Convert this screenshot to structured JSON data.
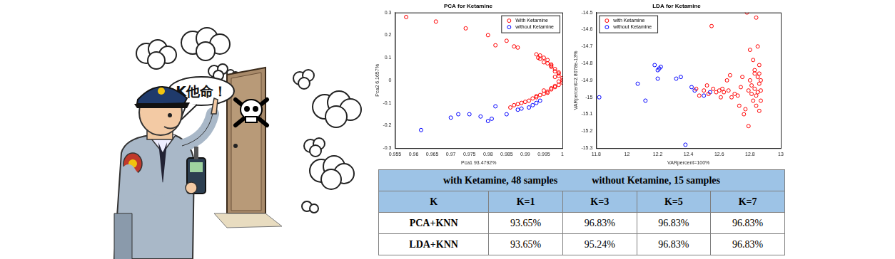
{
  "illustration": {
    "speech": "K他命！"
  },
  "chart_data": [
    {
      "type": "scatter",
      "title": "PCA for Ketamine",
      "x_label": "Pca1 93.4792%",
      "y_label": "Pca2 6.1657%",
      "xlim": [
        0.955,
        1
      ],
      "xticks": [
        0.955,
        0.96,
        0.965,
        0.97,
        0.975,
        0.98,
        0.985,
        0.99,
        0.995,
        1
      ],
      "ylim": [
        -0.3,
        0.3
      ],
      "yticks": [
        -0.3,
        -0.2,
        -0.1,
        0,
        0.1,
        0.2,
        0.3
      ],
      "grid": false,
      "legend": "upper right",
      "series": [
        {
          "name": "With Ketamine",
          "color": "#ff0000",
          "marker": "circle",
          "x": [
            0.958,
            0.966,
            0.974,
            0.98,
            0.982,
            0.985,
            0.987,
            0.988,
            0.993,
            0.994,
            0.995,
            0.996,
            0.995,
            0.997,
            0.997,
            0.998,
            0.998,
            0.999,
            0.999,
            1.0,
            1.0,
            0.999,
            1.0,
            0.999,
            0.998,
            0.998,
            0.997,
            0.996,
            0.996,
            0.995,
            0.994,
            0.993,
            0.992,
            0.991,
            0.99,
            0.989,
            0.988,
            0.987,
            0.986,
            0.998,
            0.997,
            0.995,
            0.999,
            0.996,
            0.994,
            0.993,
            0.9935,
            0.997
          ],
          "values": [
            0.28,
            0.26,
            0.23,
            0.2,
            0.155,
            0.175,
            0.15,
            0.145,
            0.115,
            0.11,
            0.1,
            0.09,
            0.08,
            0.07,
            0.06,
            0.05,
            0.04,
            0.03,
            0.02,
            0.01,
            0.0,
            -0.005,
            -0.01,
            -0.02,
            -0.025,
            -0.03,
            -0.04,
            -0.05,
            -0.055,
            -0.06,
            -0.065,
            -0.07,
            -0.08,
            -0.09,
            -0.095,
            -0.1,
            -0.105,
            -0.11,
            -0.12,
            0.015,
            -0.035,
            -0.045,
            0.035,
            0.075,
            0.095,
            -0.075,
            0.1,
            0.065
          ]
        },
        {
          "name": "without Ketamine",
          "color": "#0000ff",
          "marker": "circle",
          "x": [
            0.962,
            0.97,
            0.972,
            0.975,
            0.978,
            0.98,
            0.981,
            0.982,
            0.985,
            0.988,
            0.989,
            0.991,
            0.992,
            0.993,
            0.994
          ],
          "values": [
            -0.22,
            -0.165,
            -0.15,
            -0.15,
            -0.16,
            -0.18,
            -0.17,
            -0.115,
            -0.15,
            -0.13,
            -0.125,
            -0.12,
            -0.11,
            -0.1,
            -0.09
          ]
        }
      ]
    },
    {
      "type": "scatter",
      "title": "LDA for Ketamine",
      "x_label": "VARpercent=100%",
      "y_label": "VARpercent=2.8078e-13%",
      "xlim": [
        11.8,
        13
      ],
      "xticks": [
        11.8,
        12,
        12.2,
        12.4,
        12.6,
        12.8,
        13
      ],
      "ylim": [
        -15.3,
        -14.5
      ],
      "yticks": [
        -15.3,
        -15.2,
        -15.1,
        -15,
        -14.9,
        -14.8,
        -14.7,
        -14.6,
        -14.5
      ],
      "grid": false,
      "legend": "upper left",
      "series": [
        {
          "name": "with Ketamine",
          "color": "#ff0000",
          "marker": "circle",
          "x": [
            12.45,
            12.47,
            12.5,
            12.52,
            12.53,
            12.55,
            12.56,
            12.58,
            12.6,
            12.61,
            12.62,
            12.63,
            12.65,
            12.66,
            12.67,
            12.68,
            12.7,
            12.72,
            12.73,
            12.74,
            12.75,
            12.76,
            12.77,
            12.78,
            12.79,
            12.8,
            12.8,
            12.81,
            12.82,
            12.82,
            12.83,
            12.83,
            12.84,
            12.84,
            12.85,
            12.85,
            12.86,
            12.86,
            12.86,
            12.87,
            12.87,
            12.85,
            12.84,
            12.87,
            12.83,
            12.86,
            12.81,
            12.79
          ],
          "values": [
            -14.95,
            -14.99,
            -14.96,
            -14.93,
            -14.98,
            -14.58,
            -14.95,
            -14.97,
            -14.96,
            -15.0,
            -14.95,
            -14.97,
            -14.9,
            -14.96,
            -14.87,
            -15.0,
            -14.98,
            -14.99,
            -15.05,
            -14.94,
            -14.88,
            -15.1,
            -15.07,
            -14.5,
            -15.17,
            -14.72,
            -14.9,
            -14.98,
            -14.78,
            -15.02,
            -14.95,
            -14.84,
            -14.53,
            -15.05,
            -14.88,
            -14.97,
            -14.92,
            -15.08,
            -14.81,
            -14.9,
            -14.96,
            -14.7,
            -14.99,
            -15.02,
            -14.86,
            -14.86,
            -14.93,
            -14.96
          ]
        },
        {
          "name": "without Ketamine",
          "color": "#0000ff",
          "marker": "circle",
          "x": [
            11.82,
            12.07,
            12.12,
            12.18,
            12.2,
            12.21,
            12.22,
            12.2,
            12.32,
            12.35,
            12.38,
            12.42,
            12.44,
            12.5,
            12.54
          ],
          "values": [
            -15.0,
            -14.92,
            -15.02,
            -14.81,
            -14.89,
            -14.83,
            -14.82,
            -14.84,
            -14.89,
            -14.88,
            -15.28,
            -14.94,
            -14.96,
            -14.99,
            -14.97
          ]
        }
      ]
    }
  ],
  "table": {
    "header": [
      "with  Ketamine, 48 samples",
      "without  Ketamine, 15 samples"
    ],
    "rows": [
      [
        "K",
        "K=1",
        "K=3",
        "K=5",
        "K=7"
      ],
      [
        "PCA+KNN",
        "93.65%",
        "96.83%",
        "96.83%",
        "96.83%"
      ],
      [
        "LDA+KNN",
        "93.65%",
        "95.24%",
        "96.83%",
        "96.83%"
      ]
    ]
  }
}
